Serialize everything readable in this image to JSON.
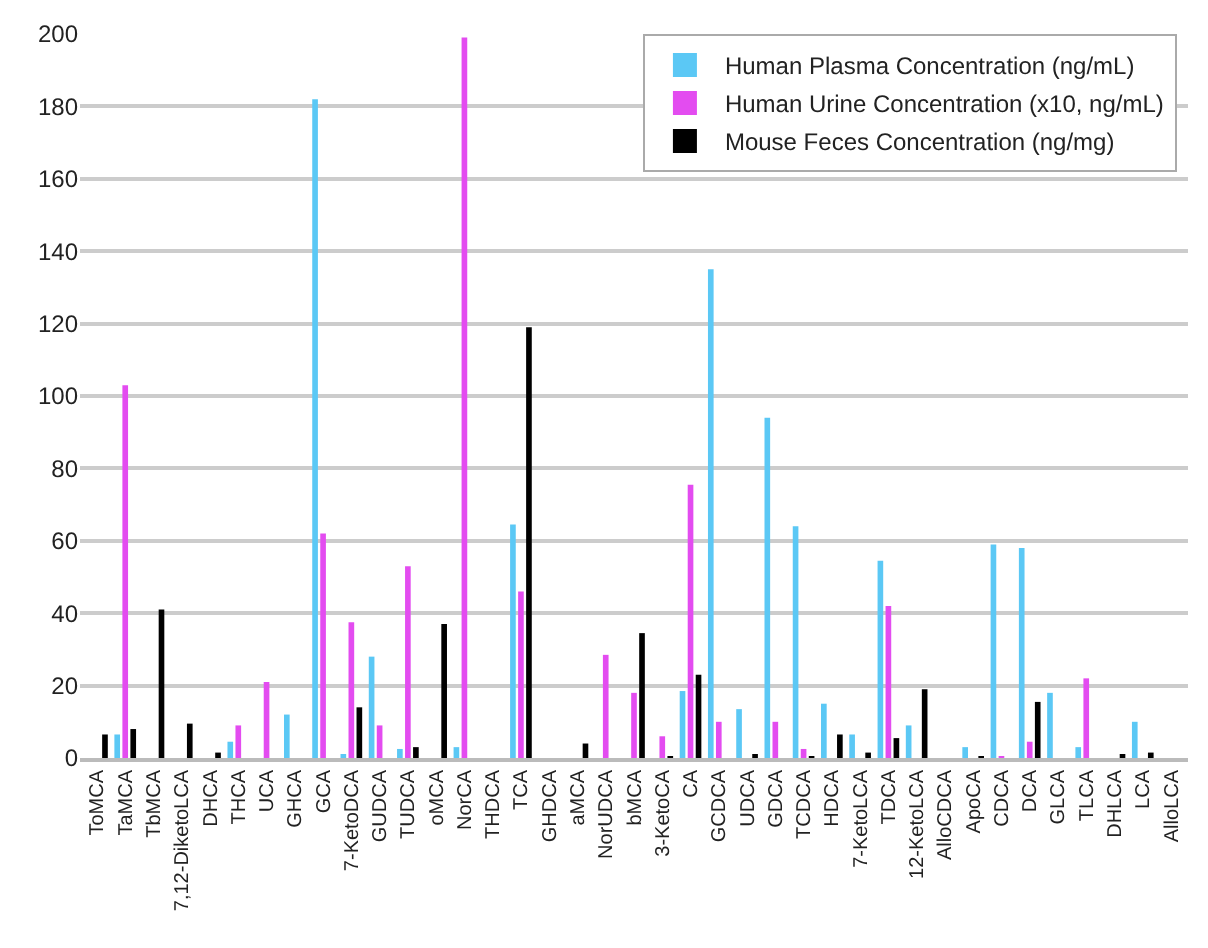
{
  "chart_data": {
    "type": "bar",
    "categories": [
      "ToMCA",
      "TaMCA",
      "TbMCA",
      "7,12-DiketoLCA",
      "DHCA",
      "THCA",
      "UCA",
      "GHCA",
      "GCA",
      "7-KetoDCA",
      "GUDCA",
      "TUDCA",
      "oMCA",
      "NorCA",
      "THDCA",
      "TCA",
      "GHDCA",
      "aMCA",
      "NorUDCA",
      "bMCA",
      "3-KetoCA",
      "CA",
      "GCDCA",
      "UDCA",
      "GDCA",
      "TCDCA",
      "HDCA",
      "7-KetoLCA",
      "TDCA",
      "12-KetoLCA",
      "AlloCDCA",
      "ApoCA",
      "CDCA",
      "DCA",
      "GLCA",
      "TLCA",
      "DHLCA",
      "LCA",
      "AlloLCA"
    ],
    "series": [
      {
        "name": "Human Plasma Concentration (ng/mL)",
        "color": "#5bc8f5",
        "values": [
          null,
          6.5,
          null,
          null,
          null,
          4.5,
          null,
          12,
          182,
          1,
          28,
          2.5,
          null,
          3,
          null,
          64.5,
          null,
          null,
          null,
          null,
          null,
          18.5,
          135,
          13.5,
          94,
          64,
          15,
          6.5,
          54.5,
          9,
          null,
          3,
          59,
          58,
          18,
          3,
          null,
          10,
          null
        ]
      },
      {
        "name": "Human Urine Concentration (x10, ng/mL)",
        "color": "#e34cf0",
        "values": [
          null,
          103,
          null,
          null,
          null,
          9,
          21,
          null,
          62,
          37.5,
          9,
          53,
          null,
          199,
          null,
          46,
          null,
          null,
          28.5,
          18,
          6,
          75.5,
          10,
          null,
          10,
          2.5,
          null,
          null,
          42,
          null,
          null,
          null,
          0.5,
          4.5,
          null,
          22,
          null,
          null,
          null
        ]
      },
      {
        "name": "Mouse Feces Concentration (ng/mg)",
        "color": "#000000",
        "values": [
          6.5,
          8,
          41,
          9.5,
          1.5,
          null,
          null,
          null,
          null,
          14,
          null,
          3,
          37,
          null,
          null,
          119,
          null,
          4,
          null,
          34.5,
          0.5,
          23,
          null,
          1,
          null,
          0.5,
          6.5,
          1.5,
          5.5,
          19,
          null,
          0.5,
          null,
          15.5,
          null,
          null,
          1,
          1.5,
          null
        ]
      }
    ],
    "ylim": [
      0,
      200
    ],
    "yticks": [
      0,
      20,
      40,
      60,
      80,
      100,
      120,
      140,
      160,
      180,
      200
    ],
    "grid": "y",
    "legend": "top right"
  }
}
